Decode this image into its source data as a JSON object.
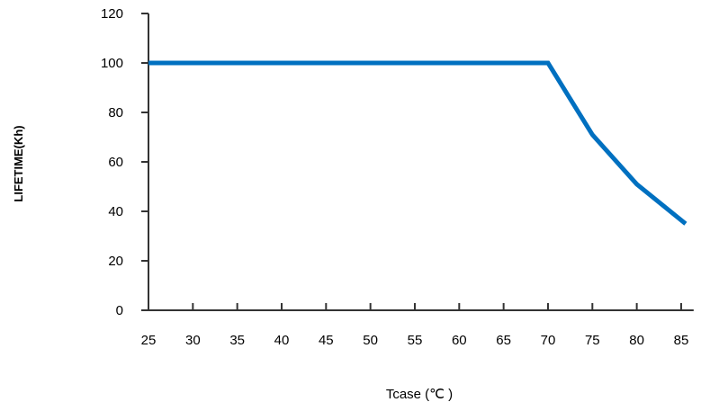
{
  "chart_data": {
    "type": "line",
    "title": "",
    "xlabel": "Tcase (℃ )",
    "ylabel": "LIFETIME(Kh)",
    "x_ticks": [
      "25",
      "30",
      "35",
      "40",
      "45",
      "50",
      "55",
      "60",
      "65",
      "70",
      "75",
      "80",
      "85"
    ],
    "y_ticks": [
      "0",
      "20",
      "40",
      "60",
      "80",
      "100",
      "120"
    ],
    "xlim": [
      25,
      86
    ],
    "ylim": [
      0,
      120
    ],
    "grid": false,
    "series": [
      {
        "color": "#0070c0",
        "points": [
          {
            "x": 25,
            "y": 100
          },
          {
            "x": 70,
            "y": 100
          },
          {
            "x": 75,
            "y": 71
          },
          {
            "x": 80,
            "y": 51
          },
          {
            "x": 85.5,
            "y": 35
          }
        ]
      }
    ]
  }
}
